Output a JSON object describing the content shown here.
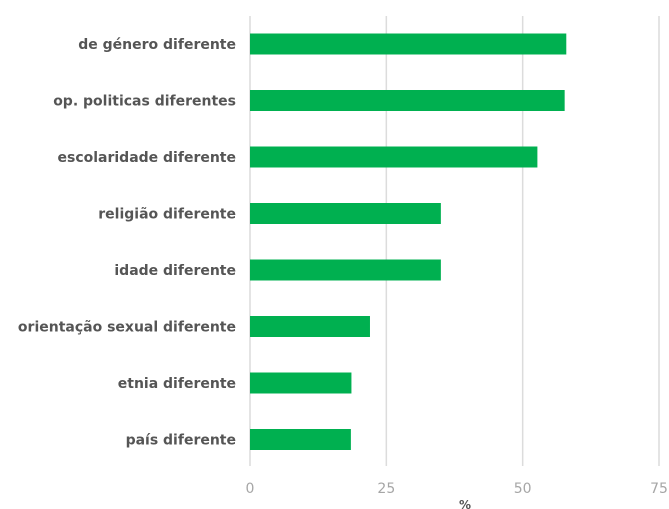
{
  "chart_data": {
    "type": "bar",
    "orientation": "horizontal",
    "categories": [
      "de género diferente",
      "op. politicas diferentes",
      "escolaridade diferente",
      "religião diferente",
      "idade diferente",
      "orientação sexual diferente",
      "etnia diferente",
      "país diferente"
    ],
    "values": [
      58,
      57.7,
      52.7,
      35,
      35,
      22,
      18.6,
      18.5
    ],
    "xlabel": "%",
    "ylabel": "",
    "xlim": [
      0,
      75
    ],
    "xticks": [
      0,
      25,
      50,
      75
    ],
    "grid": true,
    "bar_color": "#00b050"
  }
}
